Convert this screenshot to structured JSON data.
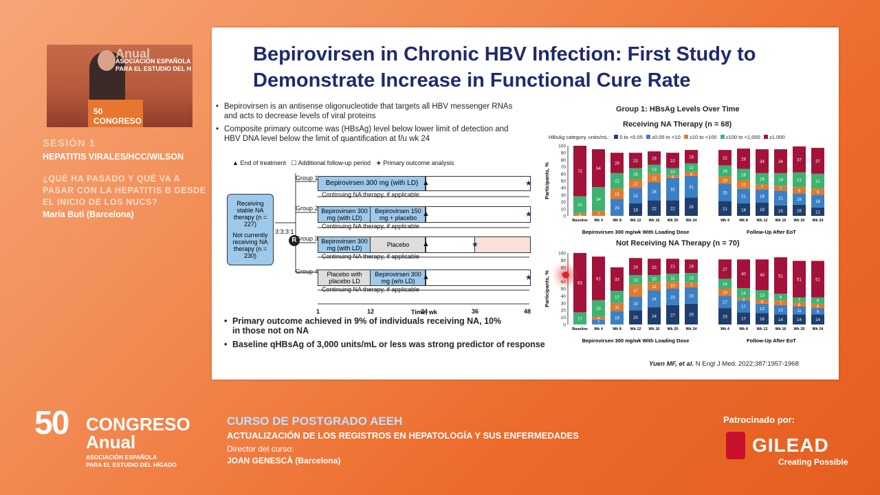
{
  "video": {
    "banner_line1": "Anual",
    "banner_line2": "ASOCIACIÓN ESPAÑOLA",
    "banner_line3": "PARA EL ESTUDIO DEL H",
    "podium_text": "50 CONGRESO Anual"
  },
  "session": {
    "title": "SESIÓN 1",
    "subtitle": "HEPATITIS VIRALES/HCC/WILSON",
    "question": "¿QUÉ HA PASADO Y QUÉ VA A PASAR CON LA HEPATITIS B DESDE EL INICIO DE LOS NUCS?",
    "speaker": "María Buti (Barcelona)"
  },
  "slide": {
    "title": "Bepirovirsen in Chronic HBV Infection: First Study to Demonstrate Increase in Functional Cure Rate",
    "bullets": [
      "Bepirovirsen is an antisense oligonucleotide that targets all HBV messenger RNAs and acts to decrease levels of viral proteins",
      "Composite primary outcome was (HBsAg) level below lower limit of detection and HBV DNA level below the limit of quantification at f/u wk 24"
    ],
    "bottom_bullets": [
      "Primary outcome achieved in 9% of individuals receiving NA, 10% in those not on NA",
      "Baseline qHBsAg of 3,000 units/mL or less was strong predictor of response"
    ],
    "legend": {
      "eot": "End of treatment",
      "followup": "Additional follow-up period",
      "primary": "Primary outcome analysis"
    },
    "left_box": {
      "receiving": "Receiving stable NA therapy (n = 227)",
      "not_receiving": "Not currently receiving NA therapy (n = 230)",
      "ratio": "3:3:3:1",
      "r": "R"
    },
    "groups": [
      {
        "label": "Group 1",
        "box1": "Bepirovirsen 300 mg (with LD)",
        "box2": "",
        "continuing": "Continuing NA therapy, if applicable"
      },
      {
        "label": "Group 2",
        "box1": "Bepirovirsen 300 mg (with LD)",
        "box2": "Bepirovirsen 150 mg + placebo",
        "continuing": "Continuing NA therapy, if applicable"
      },
      {
        "label": "Group 3",
        "box1": "Bepirovirsen 300 mg (with LD)",
        "box2": "Placebo",
        "continuing": "Continuing NA therapy, if applicable"
      },
      {
        "label": "Group 4",
        "box1": "Placebo with placebo LD",
        "box2": "Bepirovirsen 300 mg (w/o LD)",
        "continuing": "Continuing NA therapy, if applicable"
      }
    ],
    "time_axis": {
      "ticks": [
        "1",
        "12",
        "24",
        "36",
        "48"
      ],
      "label": "Time, wk"
    },
    "citation_author": "Yuen MF, et al.",
    "citation_ref": "N Engl J Med. 2022;387:1957-1968"
  },
  "chart_data": [
    {
      "type": "bar",
      "title": "Group 1: HBsAg Levels Over Time",
      "subtitle": "Receiving NA Therapy (n = 68)",
      "legend_title": "HBsAg category, units/mL:",
      "ylabel": "Participants, %",
      "ylim": [
        0,
        100
      ],
      "categories": [
        "Baseline",
        "Wk 4",
        "Wk 8",
        "Wk 12",
        "Wk 16",
        "Wk 20",
        "Wk 24",
        "Wk 4",
        "Wk 8",
        "Wk 12",
        "Wk 16",
        "Wk 20",
        "Wk 24"
      ],
      "group_labels": [
        "Bepirovirsen 300 mg/wk With Loading Dose",
        "Follow-Up After EoT"
      ],
      "series": [
        {
          "name": "0 to <0.05",
          "color": "#1f3e6e",
          "values": [
            0,
            0,
            0,
            18,
            22,
            22,
            26,
            21,
            18,
            19,
            15,
            16,
            12
          ]
        },
        {
          "name": "≥0.05 to <10",
          "color": "#3b7fc4",
          "values": [
            0,
            0,
            24,
            22,
            26,
            32,
            31,
            25,
            21,
            19,
            21,
            16,
            18
          ]
        },
        {
          "name": "≥10 to <100",
          "color": "#e07a2f",
          "values": [
            4,
            7,
            15,
            12,
            12,
            4,
            6,
            10,
            12,
            7,
            7,
            9,
            9
          ]
        },
        {
          "name": "≥100 to <1,000",
          "color": "#3cb371",
          "values": [
            24,
            34,
            22,
            16,
            13,
            10,
            12,
            16,
            16,
            16,
            18,
            21,
            21
          ]
        },
        {
          "name": "≥1,000",
          "color": "#a3123a",
          "values": [
            72,
            54,
            29,
            22,
            19,
            22,
            19,
            22,
            29,
            34,
            34,
            37,
            37
          ]
        }
      ]
    },
    {
      "type": "bar",
      "title": "Not Receiving NA Therapy (n = 70)",
      "ylabel": "Participants, %",
      "ylim": [
        0,
        100
      ],
      "categories": [
        "Baseline",
        "Wk 4",
        "Wk 8",
        "Wk 12",
        "Wk 16",
        "Wk 20",
        "Wk 24",
        "Wk 4",
        "Wk 8",
        "Wk 12",
        "Wk 16",
        "Wk 20",
        "Wk 24"
      ],
      "group_labels": [
        "Bepirovirsen 300 mg/wk With Loading Dose",
        "Follow-Up After EoT"
      ],
      "series": [
        {
          "name": "0 to <0.05",
          "color": "#1f3e6e",
          "values": [
            0,
            0,
            0,
            20,
            24,
            27,
            29,
            23,
            17,
            16,
            14,
            14,
            14
          ]
        },
        {
          "name": "≥0.05 to <10",
          "color": "#3b7fc4",
          "values": [
            0,
            7,
            19,
            19,
            24,
            23,
            23,
            17,
            17,
            13,
            13,
            11,
            9
          ]
        },
        {
          "name": "≥10 to <100",
          "color": "#e07a2f",
          "values": [
            0,
            4,
            11,
            17,
            11,
            10,
            7,
            10,
            3,
            6,
            7,
            6,
            6
          ]
        },
        {
          "name": "≥100 to <1,000",
          "color": "#3cb371",
          "values": [
            17,
            23,
            17,
            13,
            10,
            11,
            13,
            14,
            14,
            13,
            9,
            7,
            9
          ]
        },
        {
          "name": "≥1,000",
          "color": "#a3123a",
          "values": [
            83,
            61,
            33,
            24,
            23,
            21,
            19,
            27,
            40,
            43,
            51,
            51,
            51
          ]
        }
      ]
    }
  ],
  "congress": {
    "number": "50",
    "name": "CONGRESO",
    "anual": "Anual",
    "assoc1": "ASOCIACIÓN ESPAÑOLA",
    "assoc2": "PARA EL ESTUDIO DEL HÍGADO"
  },
  "course": {
    "title": "CURSO DE POSTGRADO AEEH",
    "subtitle": "ACTUALIZACIÓN DE LOS REGISTROS EN HEPATOLOGÍA Y SUS ENFERMEDADES",
    "director_label": "Director del curso:",
    "director": "JOAN GENESCÀ (Barcelona)"
  },
  "sponsor": {
    "label": "Patrocinado por:",
    "name": "GILEAD",
    "tagline": "Creating Possible"
  }
}
